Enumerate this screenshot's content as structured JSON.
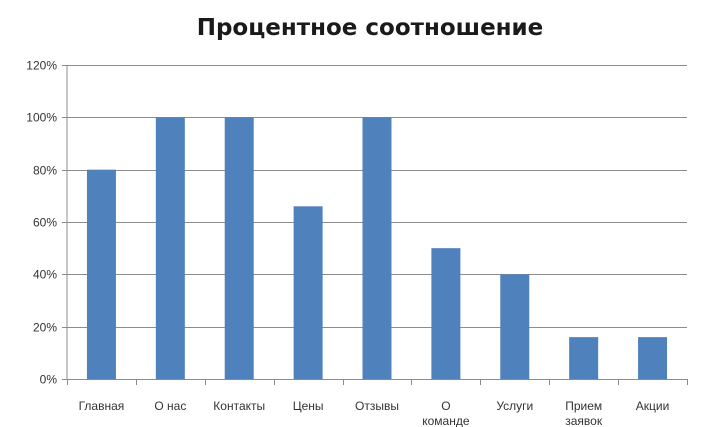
{
  "chart_data": {
    "type": "bar",
    "title": "Процентное соотношение",
    "categories": [
      [
        "Главная"
      ],
      [
        "О нас"
      ],
      [
        "Контакты"
      ],
      [
        "Цены"
      ],
      [
        "Отзывы"
      ],
      [
        "О",
        "команде"
      ],
      [
        "Услуги"
      ],
      [
        "Прием",
        "заявок"
      ],
      [
        "Акции"
      ]
    ],
    "values": [
      0.8,
      1.0,
      1.0,
      0.66,
      1.0,
      0.5,
      0.4,
      0.16,
      0.16
    ],
    "ylim": [
      0,
      1.2
    ],
    "yticks": [
      0,
      0.2,
      0.4,
      0.6,
      0.8,
      1.0,
      1.2
    ],
    "ytick_labels": [
      "0%",
      "20%",
      "40%",
      "60%",
      "80%",
      "100%",
      "120%"
    ],
    "xlabel": "",
    "ylabel": "",
    "grid": true,
    "legend": "none",
    "bar_color": "#4f81bd"
  }
}
